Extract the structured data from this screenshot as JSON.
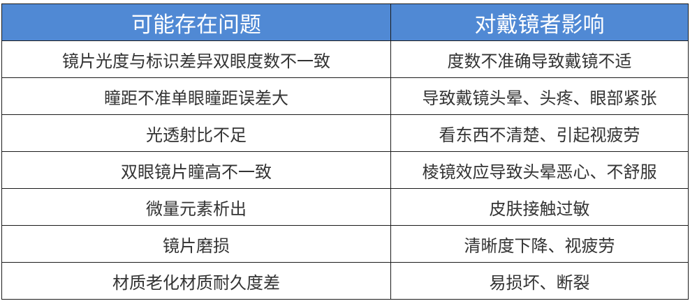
{
  "table": {
    "header_color": "#5089d4",
    "headers": [
      "可能存在问题",
      "对戴镜者影响"
    ],
    "rows": [
      [
        "镜片光度与标识差异双眼度数不一致",
        "度数不准确导致戴镜不适"
      ],
      [
        "瞳距不准单眼瞳距误差大",
        "导致戴镜头晕、头疼、眼部紧张"
      ],
      [
        "光透射比不足",
        "看东西不清楚、引起视疲劳"
      ],
      [
        "双眼镜片瞳高不一致",
        "棱镜效应导致头晕恶心、不舒服"
      ],
      [
        "微量元素析出",
        "皮肤接触过敏"
      ],
      [
        "镜片磨损",
        "清晰度下降、视疲劳"
      ],
      [
        "材质老化材质耐久度差",
        "易损坏、断裂"
      ]
    ]
  }
}
